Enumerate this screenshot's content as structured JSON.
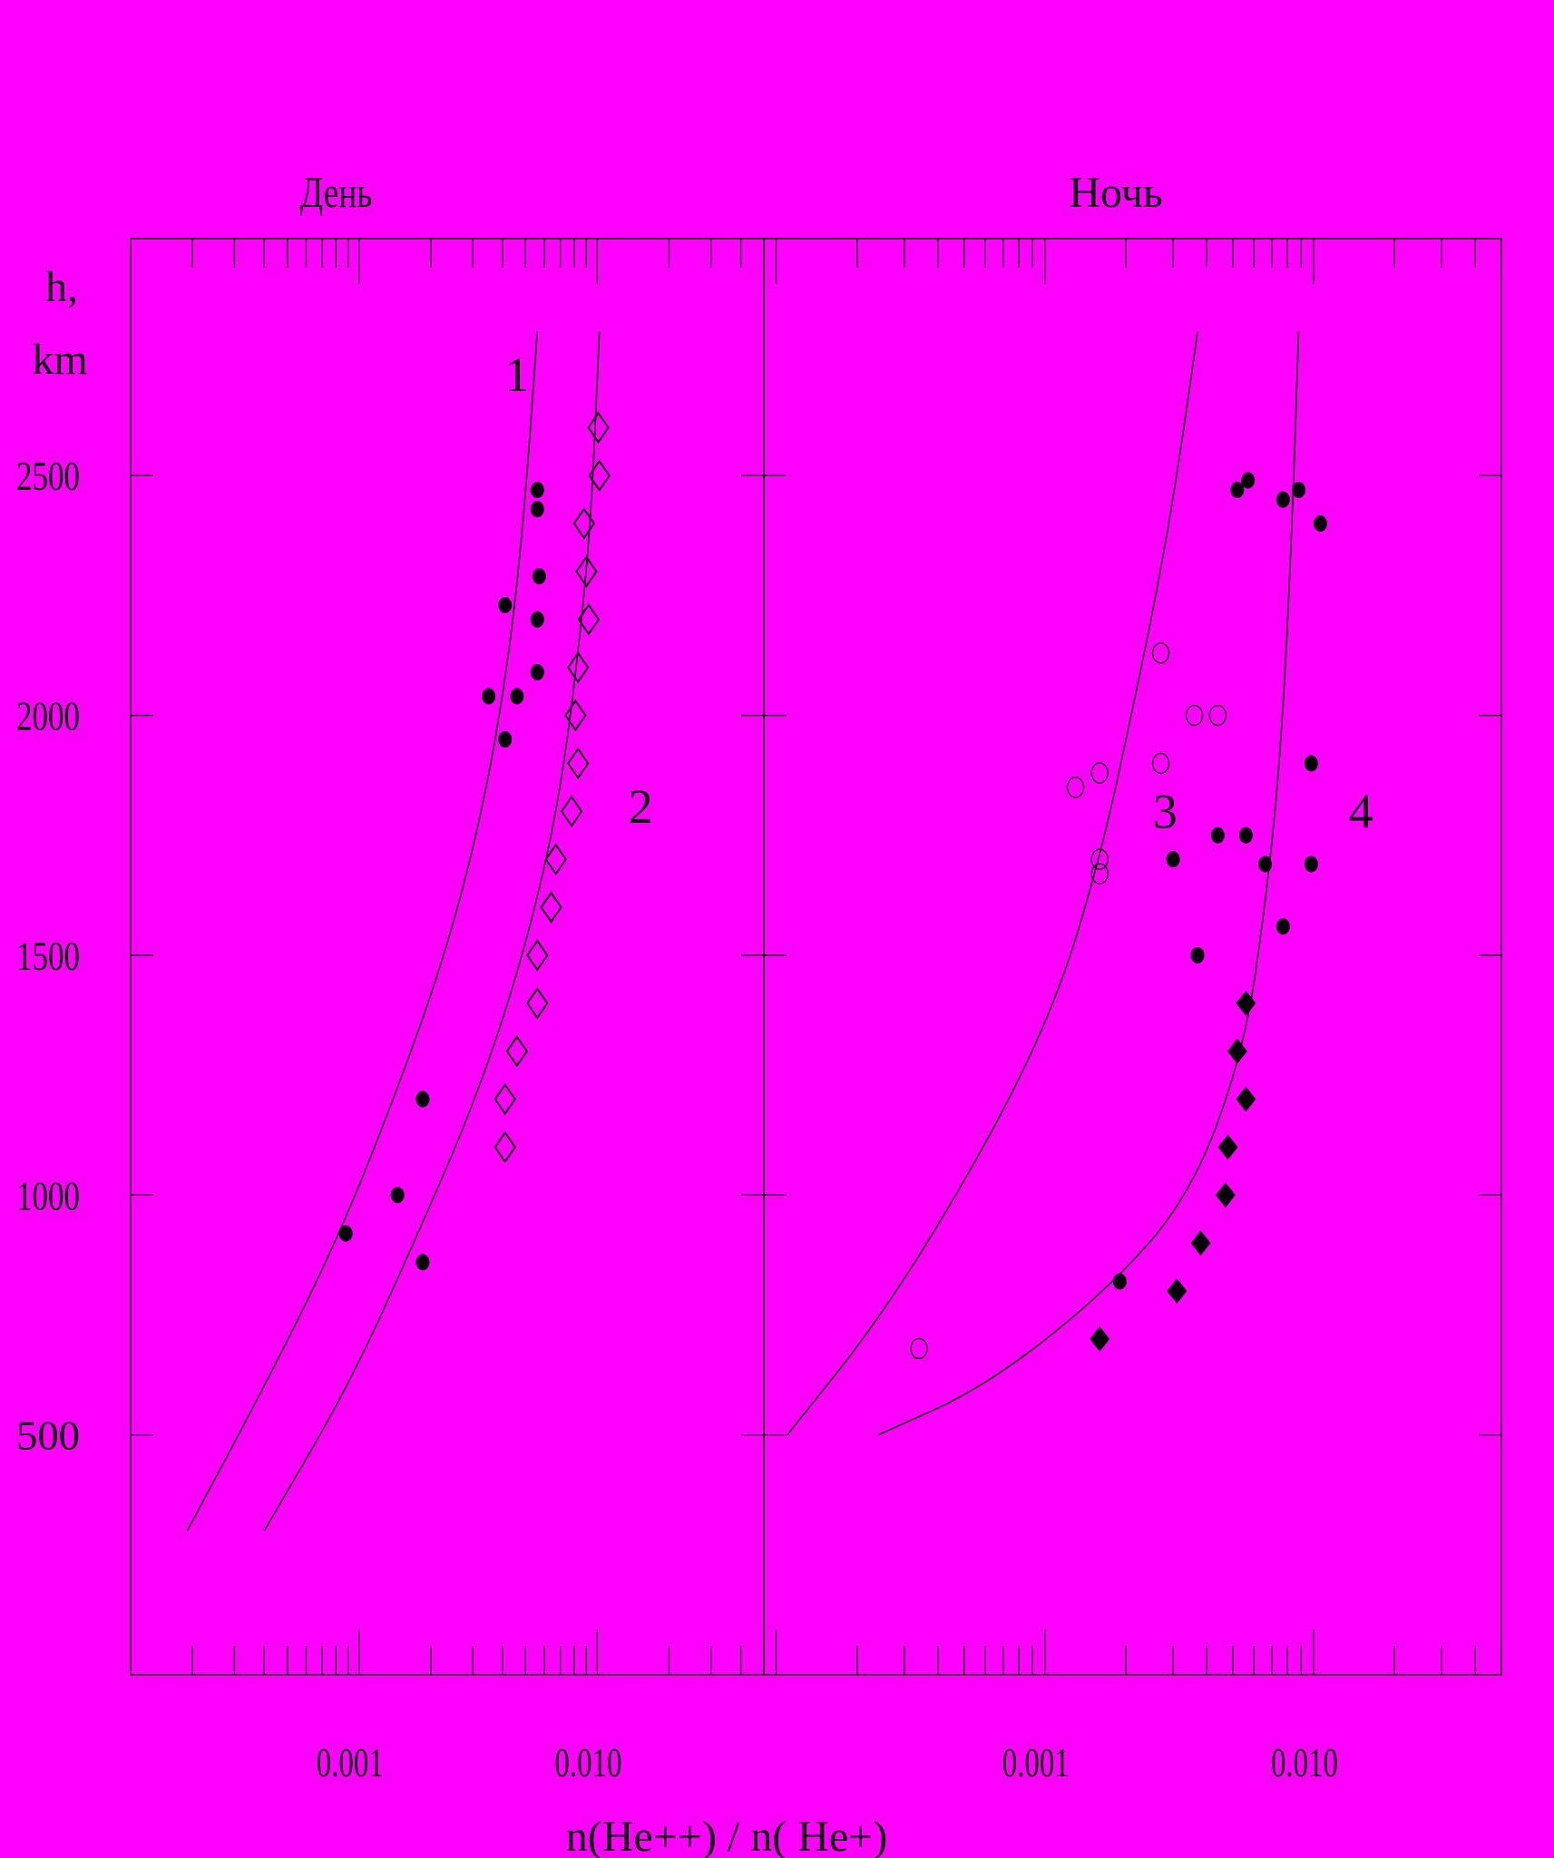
{
  "colors": {
    "background": "#ff00ff",
    "ink": "#000000"
  },
  "chart_data": {
    "type": "scatter",
    "x_scale": "log",
    "y_scale": "linear",
    "xlim": [
      0.0001,
      0.05
    ],
    "ylim": [
      0,
      3000
    ],
    "grid": false,
    "xlabel": "n(He++) / n( He+)",
    "ylabel": "h,\nkm",
    "y_ticks": [
      500,
      1000,
      1500,
      2000,
      2500
    ],
    "y_tick_labels": [
      "500",
      "1000",
      "1500",
      "2000",
      "2500"
    ],
    "x_tick_labels": [
      "0.001",
      "0.010"
    ],
    "x_tick_values": [
      0.001,
      0.01
    ],
    "panels": [
      {
        "title": "День",
        "curves": [
          {
            "label": "1",
            "label_pos": [
              0.0046,
              2710
            ],
            "points": [
              [
                0.00019,
                300
              ],
              [
                0.0004,
                600
              ],
              [
                0.0008,
                900
              ],
              [
                0.0014,
                1200
              ],
              [
                0.0023,
                1500
              ],
              [
                0.0033,
                1800
              ],
              [
                0.0042,
                2100
              ],
              [
                0.0049,
                2400
              ],
              [
                0.0056,
                2800
              ]
            ]
          },
          {
            "label": "2",
            "label_pos": [
              0.0152,
              1810
            ],
            "points": [
              [
                0.0004,
                300
              ],
              [
                0.0009,
                600
              ],
              [
                0.0017,
                900
              ],
              [
                0.0031,
                1200
              ],
              [
                0.0049,
                1500
              ],
              [
                0.0068,
                1800
              ],
              [
                0.0082,
                2100
              ],
              [
                0.0094,
                2400
              ],
              [
                0.0102,
                2800
              ]
            ]
          }
        ],
        "series": [
          {
            "marker": "filled-circle",
            "points": [
              [
                0.00088,
                920
              ],
              [
                0.00145,
                1000
              ],
              [
                0.00185,
                1200
              ],
              [
                0.00185,
                860
              ],
              [
                0.0035,
                2040
              ],
              [
                0.0041,
                2230
              ],
              [
                0.0041,
                1950
              ],
              [
                0.0046,
                2040
              ],
              [
                0.0056,
                2470
              ],
              [
                0.0056,
                2430
              ],
              [
                0.0057,
                2290
              ],
              [
                0.0056,
                2200
              ],
              [
                0.0056,
                2090
              ]
            ]
          },
          {
            "marker": "open-diamond",
            "points": [
              [
                0.0041,
                1100
              ],
              [
                0.0041,
                1200
              ],
              [
                0.0046,
                1300
              ],
              [
                0.0056,
                1400
              ],
              [
                0.0056,
                1500
              ],
              [
                0.0064,
                1600
              ],
              [
                0.0067,
                1700
              ],
              [
                0.0078,
                1800
              ],
              [
                0.0083,
                1900
              ],
              [
                0.0081,
                2000
              ],
              [
                0.0083,
                2100
              ],
              [
                0.0092,
                2200
              ],
              [
                0.009,
                2300
              ],
              [
                0.0088,
                2400
              ],
              [
                0.0102,
                2500
              ],
              [
                0.0101,
                2600
              ]
            ]
          }
        ]
      },
      {
        "title": "Ночь",
        "curves": [
          {
            "label": "3",
            "label_pos": [
              0.0028,
              1800
            ],
            "points": [
              [
                0.00011,
                500
              ],
              [
                0.00025,
                750
              ],
              [
                0.0006,
                1100
              ],
              [
                0.0011,
                1400
              ],
              [
                0.0016,
                1700
              ],
              [
                0.0021,
                2000
              ],
              [
                0.0027,
                2300
              ],
              [
                0.0032,
                2550
              ],
              [
                0.0037,
                2800
              ]
            ]
          },
          {
            "label": "4",
            "label_pos": [
              0.015,
              1800
            ],
            "points": [
              [
                0.00024,
                500
              ],
              [
                0.0006,
                600
              ],
              [
                0.0017,
                800
              ],
              [
                0.0035,
                1000
              ],
              [
                0.0055,
                1300
              ],
              [
                0.0066,
                1600
              ],
              [
                0.0075,
                1900
              ],
              [
                0.0082,
                2300
              ],
              [
                0.0088,
                2800
              ]
            ]
          }
        ],
        "series": [
          {
            "marker": "open-circle",
            "points": [
              [
                0.00034,
                680
              ],
              [
                0.0013,
                1850
              ],
              [
                0.0016,
                1880
              ],
              [
                0.0016,
                1700
              ],
              [
                0.0016,
                1670
              ],
              [
                0.0027,
                2130
              ],
              [
                0.0027,
                1900
              ],
              [
                0.0036,
                2000
              ],
              [
                0.0044,
                2000
              ]
            ]
          },
          {
            "marker": "filled-circle",
            "points": [
              [
                0.0019,
                820
              ],
              [
                0.003,
                1700
              ],
              [
                0.0037,
                1500
              ],
              [
                0.0044,
                1750
              ],
              [
                0.0052,
                2470
              ],
              [
                0.0057,
                2490
              ],
              [
                0.0056,
                1750
              ],
              [
                0.0066,
                1690
              ],
              [
                0.0077,
                1560
              ],
              [
                0.0077,
                2450
              ],
              [
                0.0088,
                2470
              ],
              [
                0.0098,
                1900
              ],
              [
                0.0098,
                1690
              ],
              [
                0.0106,
                2400
              ]
            ]
          },
          {
            "marker": "filled-diamond",
            "points": [
              [
                0.0016,
                700
              ],
              [
                0.0031,
                800
              ],
              [
                0.0038,
                900
              ],
              [
                0.0047,
                1000
              ],
              [
                0.0048,
                1100
              ],
              [
                0.0052,
                1300
              ],
              [
                0.0056,
                1200
              ],
              [
                0.0056,
                1400
              ]
            ]
          }
        ]
      }
    ]
  }
}
